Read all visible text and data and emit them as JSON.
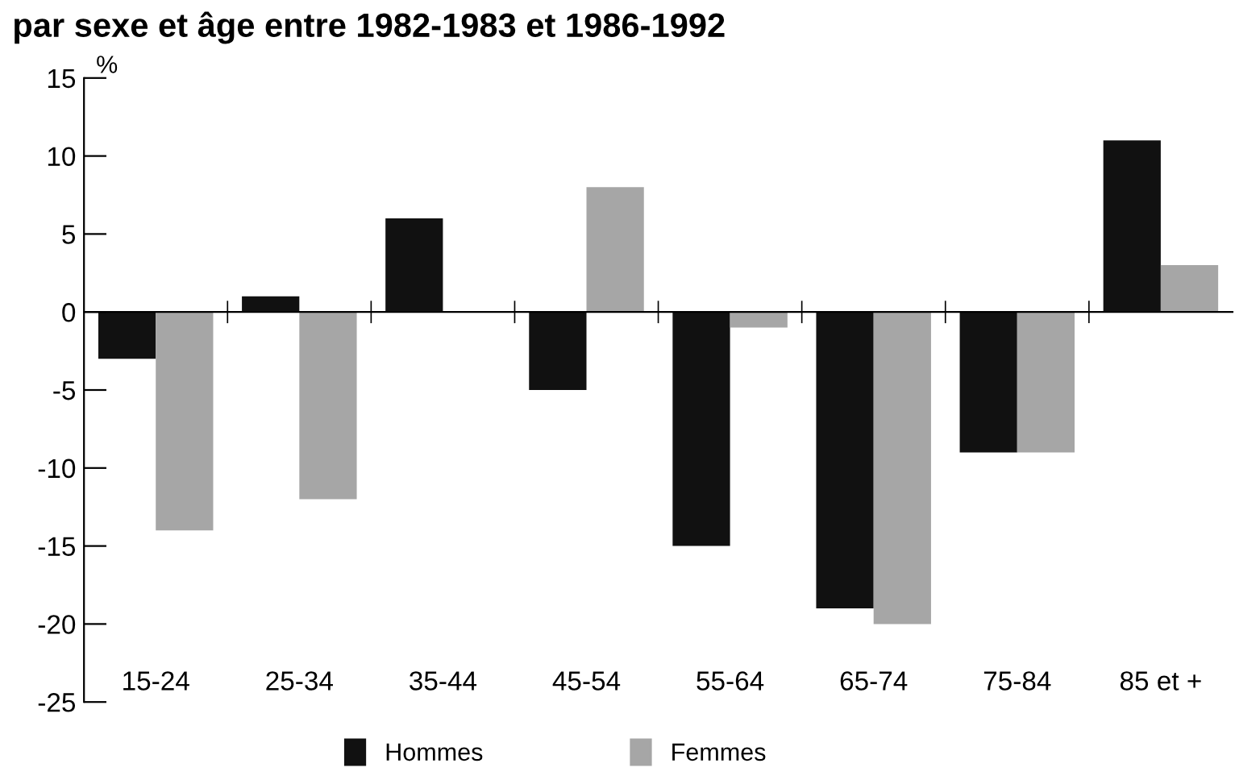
{
  "chart_data": {
    "type": "bar",
    "title": "par sexe et âge entre 1982-1983 et 1986-1992",
    "ylabel": "%",
    "categories": [
      "15-24",
      "25-34",
      "35-44",
      "45-54",
      "55-64",
      "65-74",
      "75-84",
      "85 et +"
    ],
    "series": [
      {
        "name": "Hommes",
        "color": "#111111",
        "values": [
          -3,
          1,
          6,
          -5,
          -15,
          -19,
          -9,
          11
        ]
      },
      {
        "name": "Femmes",
        "color": "#a6a6a6",
        "values": [
          -14,
          -12,
          0,
          8,
          -1,
          -20,
          -9,
          3
        ]
      }
    ],
    "ylim": [
      -25,
      15
    ],
    "yticks": [
      -25,
      -20,
      -15,
      -10,
      -5,
      0,
      5,
      10,
      15
    ],
    "legend": "bottom"
  }
}
